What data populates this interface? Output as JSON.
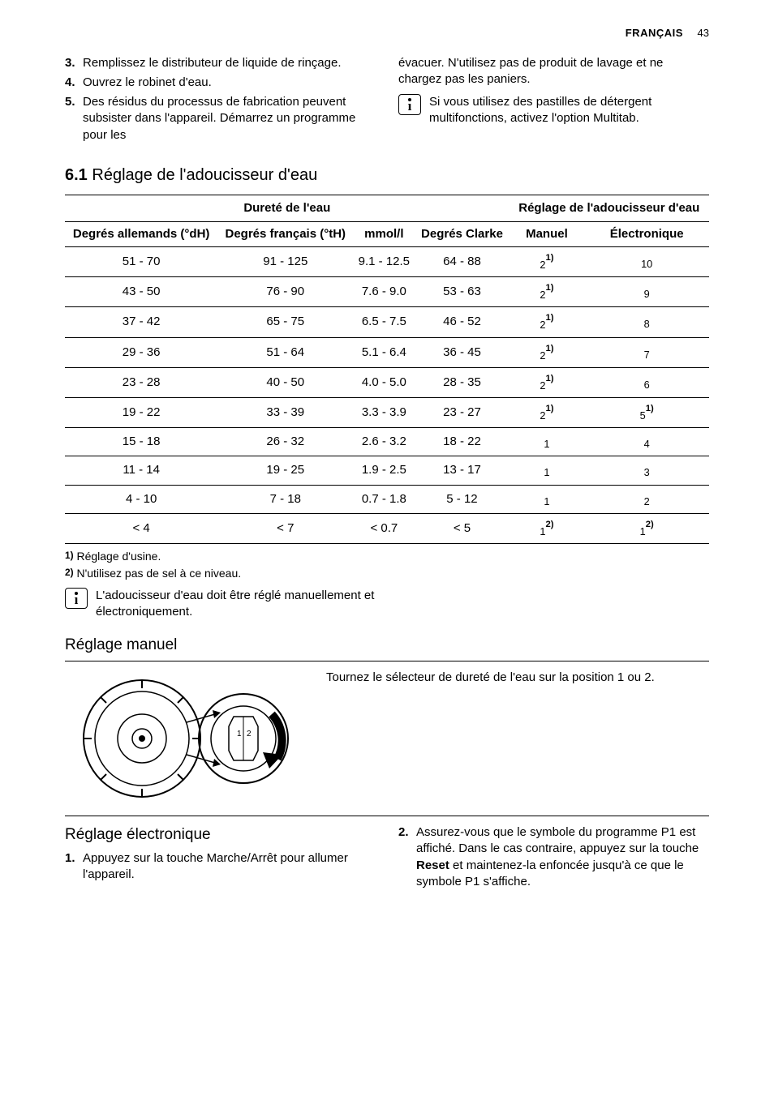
{
  "header": {
    "language": "FRANÇAIS",
    "page_number": "43"
  },
  "intro": {
    "left_items": [
      {
        "num": "3.",
        "text": "Remplissez le distributeur de liquide de rinçage."
      },
      {
        "num": "4.",
        "text": "Ouvrez le robinet d'eau."
      },
      {
        "num": "5.",
        "text": "Des résidus du processus de fabrication peuvent subsister dans l'appareil. Démarrez un programme pour les"
      }
    ],
    "right_continuation": "évacuer. N'utilisez pas de produit de lavage et ne chargez pas les paniers.",
    "right_info": "Si vous utilisez des pastilles de détergent multifonctions, activez l'option Multitab."
  },
  "section_6_1": {
    "number": "6.1",
    "title": "Réglage de l'adoucisseur d'eau",
    "table": {
      "group_headers": {
        "hardness": "Dureté de l'eau",
        "setting": "Réglage de l'adoucisseur d'eau"
      },
      "columns": [
        "Degrés allemands (°dH)",
        "Degrés français (°tH)",
        "mmol/l",
        "Degrés Clarke",
        "Manuel",
        "Électronique"
      ],
      "rows": [
        {
          "dh": "51 - 70",
          "th": "91 - 125",
          "mmol": "9.1 - 12.5",
          "clarke": "64 - 88",
          "manual_base": "2",
          "manual_sup": "1)",
          "elec_base": "10",
          "elec_sup": ""
        },
        {
          "dh": "43 - 50",
          "th": "76 - 90",
          "mmol": "7.6 - 9.0",
          "clarke": "53 - 63",
          "manual_base": "2",
          "manual_sup": "1)",
          "elec_base": "9",
          "elec_sup": ""
        },
        {
          "dh": "37 - 42",
          "th": "65 - 75",
          "mmol": "6.5 - 7.5",
          "clarke": "46 - 52",
          "manual_base": "2",
          "manual_sup": "1)",
          "elec_base": "8",
          "elec_sup": ""
        },
        {
          "dh": "29 - 36",
          "th": "51 - 64",
          "mmol": "5.1 - 6.4",
          "clarke": "36 - 45",
          "manual_base": "2",
          "manual_sup": "1)",
          "elec_base": "7",
          "elec_sup": ""
        },
        {
          "dh": "23 - 28",
          "th": "40 - 50",
          "mmol": "4.0 - 5.0",
          "clarke": "28 - 35",
          "manual_base": "2",
          "manual_sup": "1)",
          "elec_base": "6",
          "elec_sup": ""
        },
        {
          "dh": "19 - 22",
          "th": "33 - 39",
          "mmol": "3.3 - 3.9",
          "clarke": "23 - 27",
          "manual_base": "2",
          "manual_sup": "1)",
          "elec_base": "5",
          "elec_sup": "1)"
        },
        {
          "dh": "15 - 18",
          "th": "26 - 32",
          "mmol": "2.6 - 3.2",
          "clarke": "18 - 22",
          "manual_base": "1",
          "manual_sup": "",
          "elec_base": "4",
          "elec_sup": ""
        },
        {
          "dh": "11 - 14",
          "th": "19 - 25",
          "mmol": "1.9 - 2.5",
          "clarke": "13 - 17",
          "manual_base": "1",
          "manual_sup": "",
          "elec_base": "3",
          "elec_sup": ""
        },
        {
          "dh": "4 - 10",
          "th": "7 - 18",
          "mmol": "0.7 - 1.8",
          "clarke": "5 - 12",
          "manual_base": "1",
          "manual_sup": "",
          "elec_base": "2",
          "elec_sup": ""
        },
        {
          "dh": "< 4",
          "th": "< 7",
          "mmol": "< 0.7",
          "clarke": "< 5",
          "manual_base": "1",
          "manual_sup": "2)",
          "elec_base": "1",
          "elec_sup": "2)"
        }
      ],
      "footnotes": [
        {
          "num": "1)",
          "text": "Réglage d'usine."
        },
        {
          "num": "2)",
          "text": "N'utilisez pas de sel à ce niveau."
        }
      ],
      "info_note": "L'adoucisseur d'eau doit être réglé manuellement et électroniquement."
    }
  },
  "manual": {
    "heading": "Réglage manuel",
    "text": "Tournez le sélecteur de dureté de l'eau sur la position 1 ou 2."
  },
  "electronic": {
    "heading": "Réglage électronique",
    "left_items": [
      {
        "num": "1.",
        "text": "Appuyez sur la touche Marche/Arrêt pour allumer l'appareil."
      }
    ],
    "right_items": [
      {
        "num": "2.",
        "text_before": "Assurez-vous que le symbole du programme P1 est affiché. Dans le cas contraire, appuyez sur la touche ",
        "bold": "Reset",
        "text_after": " et maintenez-la enfoncée jusqu'à ce que le symbole P1 s'affiche."
      }
    ]
  },
  "colors": {
    "text": "#000000",
    "background": "#ffffff",
    "rule": "#000000"
  }
}
